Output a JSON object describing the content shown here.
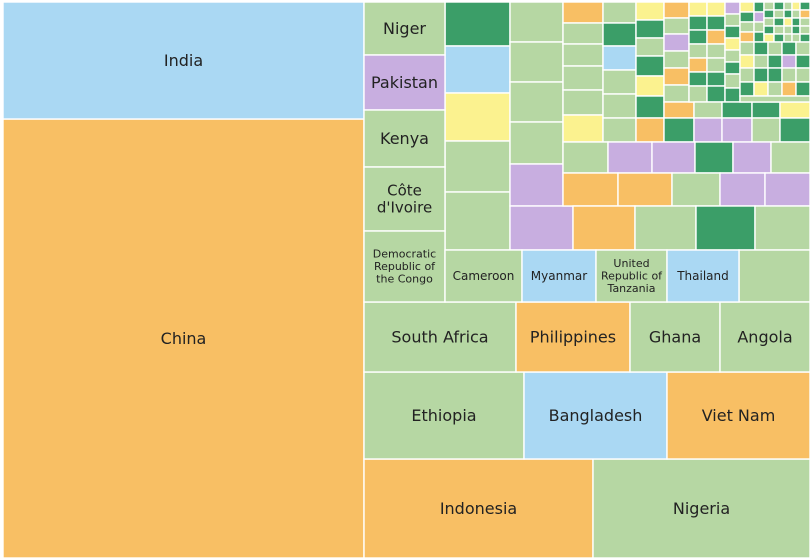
{
  "colors": {
    "green": "#b6d7a3",
    "orange": "#f8bf64",
    "blue": "#aad8f3",
    "purple": "#c8aee0",
    "yellow": "#fbf28f",
    "dark-green": "#3b9e68",
    "tan": "#e5c48a"
  },
  "chart_data": {
    "type": "treemap",
    "labeled_tiles": [
      {
        "label": "China",
        "color": "orange"
      },
      {
        "label": "India",
        "color": "blue"
      },
      {
        "label": "Indonesia",
        "color": "orange"
      },
      {
        "label": "Nigeria",
        "color": "green"
      },
      {
        "label": "Ethiopia",
        "color": "green"
      },
      {
        "label": "Bangladesh",
        "color": "blue"
      },
      {
        "label": "Viet Nam",
        "color": "orange"
      },
      {
        "label": "South Africa",
        "color": "green"
      },
      {
        "label": "Philippines",
        "color": "orange"
      },
      {
        "label": "Ghana",
        "color": "green"
      },
      {
        "label": "Angola",
        "color": "green"
      },
      {
        "label": "Niger",
        "color": "green"
      },
      {
        "label": "Pakistan",
        "color": "purple"
      },
      {
        "label": "Kenya",
        "color": "green"
      },
      {
        "label": "Côte d'Ivoire",
        "color": "green"
      },
      {
        "label": "Democratic Republic of the Congo",
        "color": "green"
      },
      {
        "label": "Cameroon",
        "color": "green"
      },
      {
        "label": "Myanmar",
        "color": "blue"
      },
      {
        "label": "United Republic of Tanzania",
        "color": "green"
      },
      {
        "label": "Thailand",
        "color": "blue"
      }
    ]
  }
}
